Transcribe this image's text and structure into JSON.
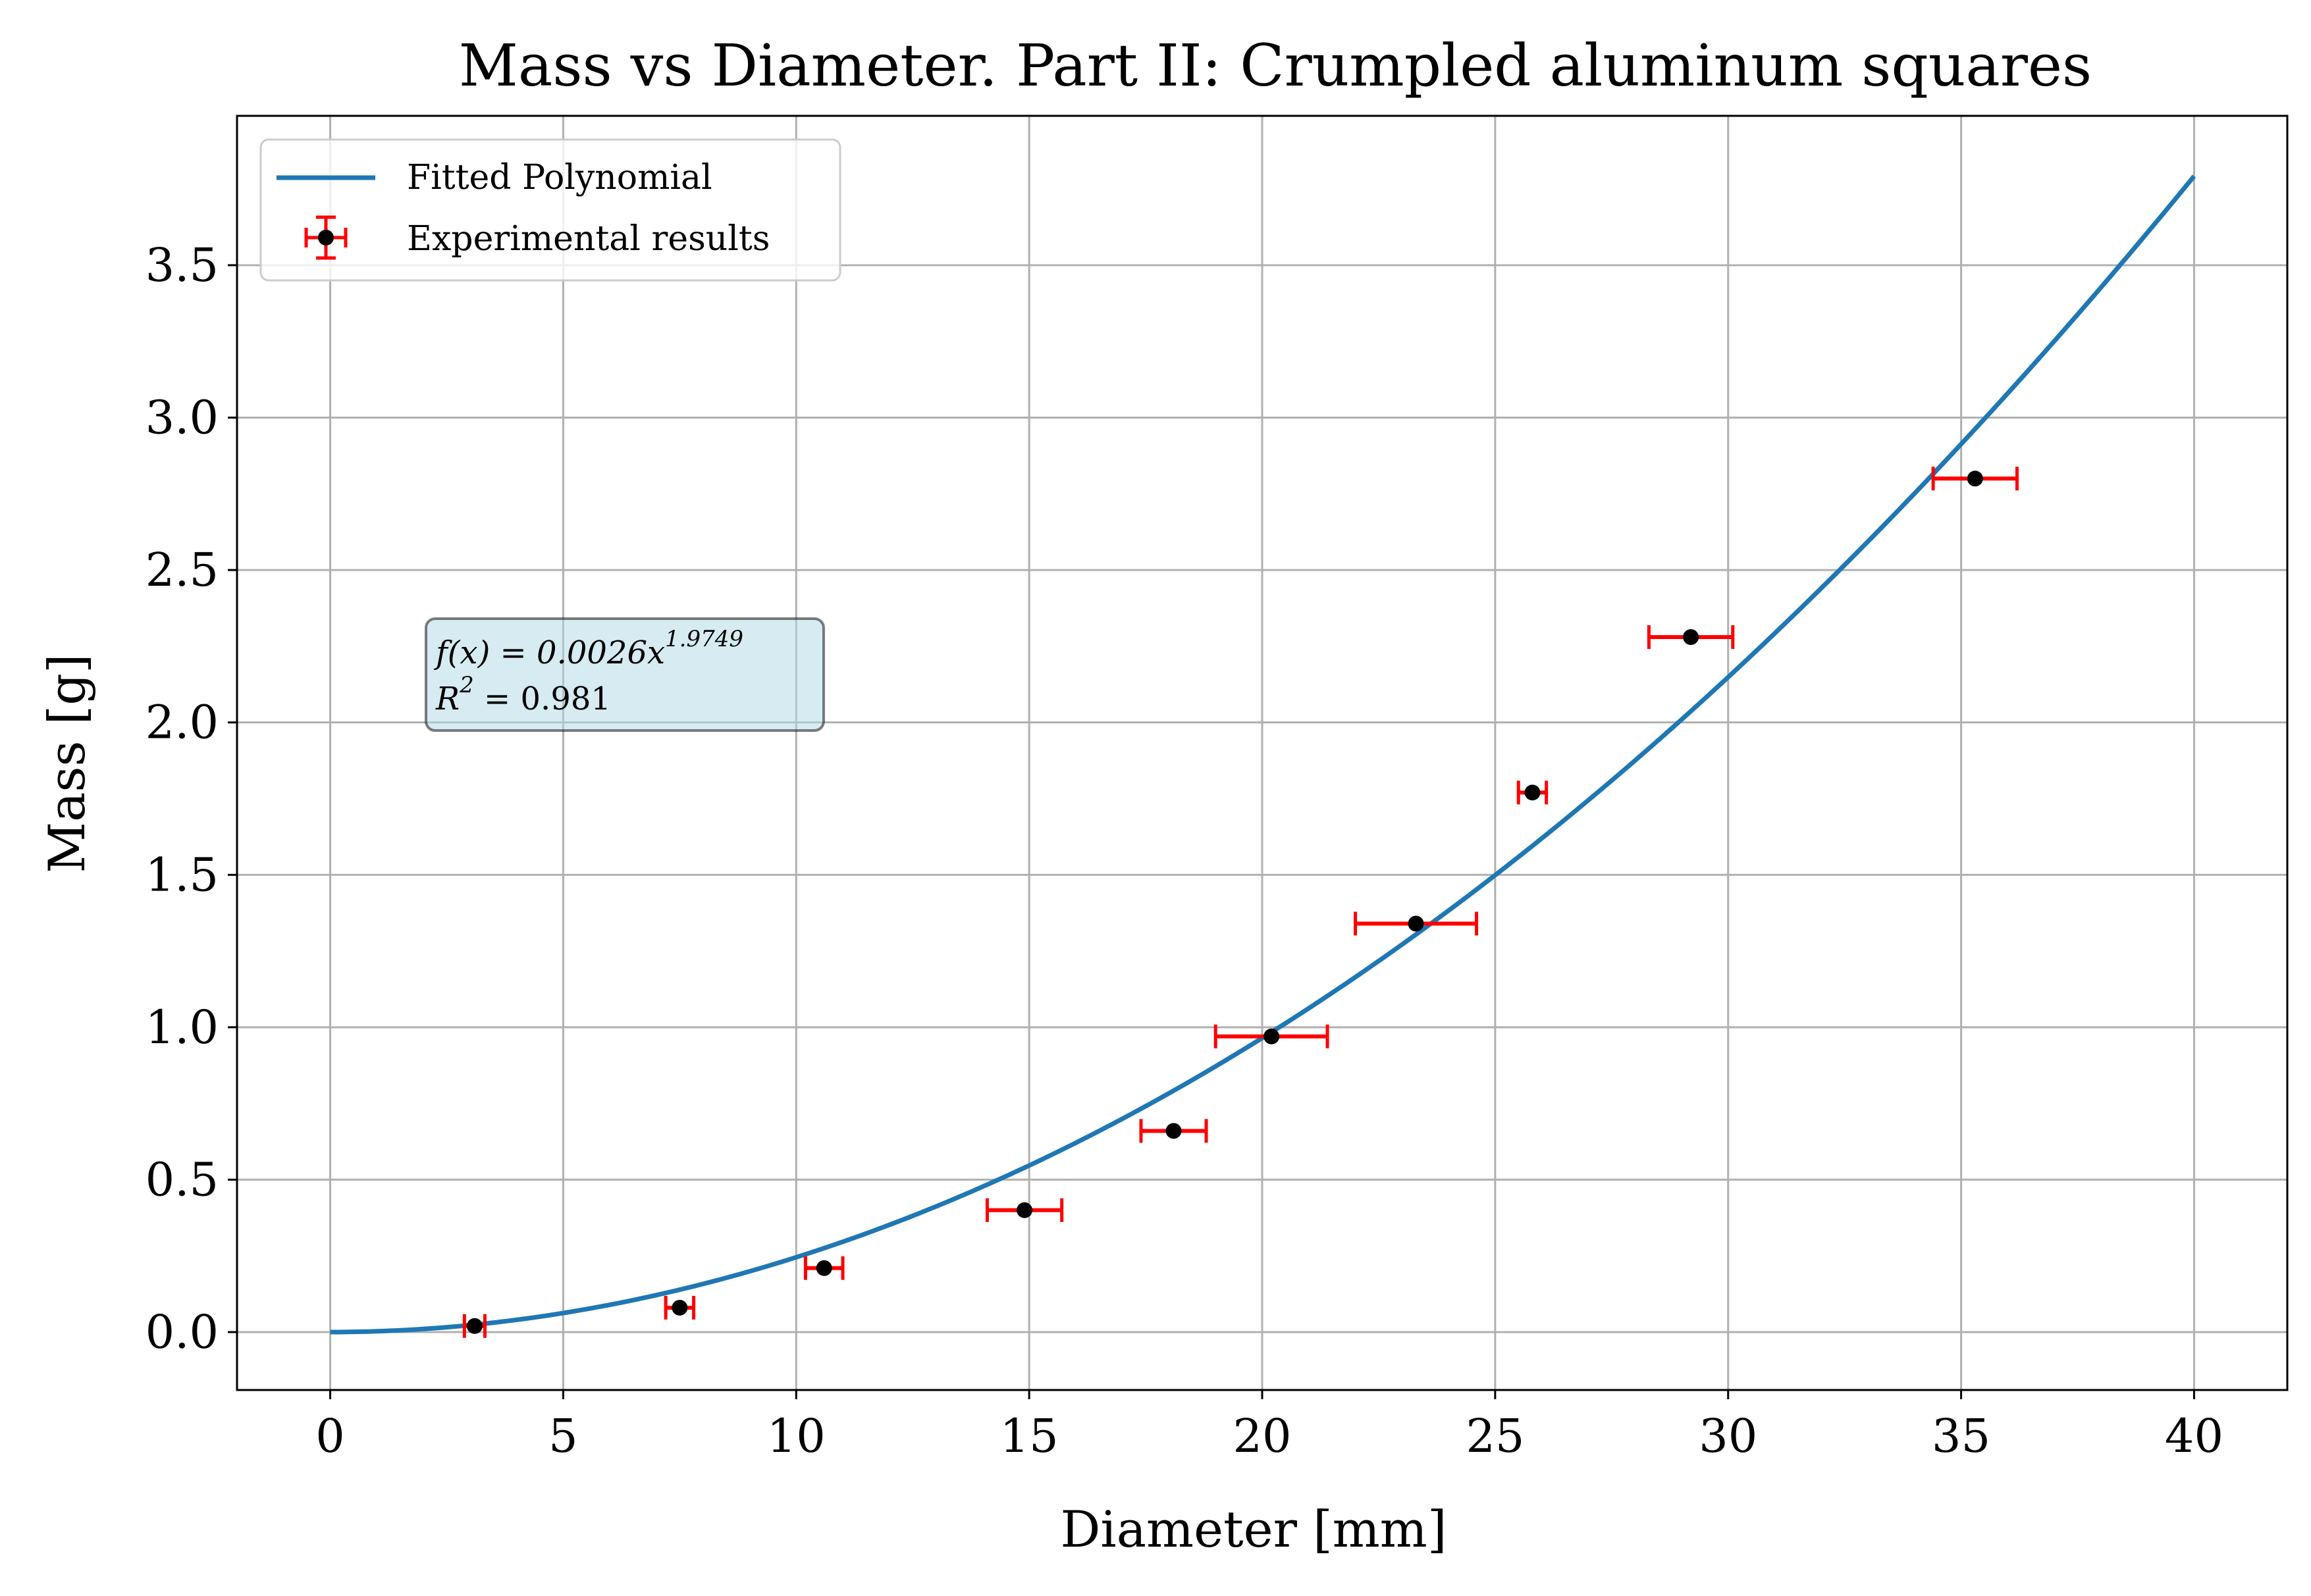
{
  "chart_data": {
    "type": "scatter",
    "title": "Mass vs Diameter. Part II: Crumpled aluminum squares",
    "xlabel": "Diameter [mm]",
    "ylabel": "Mass [g]",
    "xlim": [
      -2,
      42
    ],
    "ylim": [
      -0.19,
      3.99
    ],
    "xticks": [
      0,
      5,
      10,
      15,
      20,
      25,
      30,
      35,
      40
    ],
    "xtick_labels": [
      "0",
      "5",
      "10",
      "15",
      "20",
      "25",
      "30",
      "35",
      "40"
    ],
    "yticks": [
      0.0,
      0.5,
      1.0,
      1.5,
      2.0,
      2.5,
      3.0,
      3.5
    ],
    "ytick_labels": [
      "0.0",
      "0.5",
      "1.0",
      "1.5",
      "2.0",
      "2.5",
      "3.0",
      "3.5"
    ],
    "grid": true,
    "legend_position": "top-left",
    "series": [
      {
        "name": "Fitted Polynomial",
        "kind": "line",
        "color": "#1f77b4",
        "function": {
          "coefficient": 0.0026,
          "exponent": 1.9749
        },
        "x_range": [
          0,
          40
        ]
      },
      {
        "name": "Experimental results",
        "kind": "errorbar",
        "marker_color": "#000000",
        "error_color": "#ff0000",
        "x": [
          3.1,
          7.5,
          10.6,
          14.9,
          18.1,
          20.2,
          23.3,
          25.8,
          29.2,
          35.3
        ],
        "y": [
          0.02,
          0.08,
          0.21,
          0.4,
          0.66,
          0.97,
          1.34,
          1.77,
          2.28,
          2.8
        ],
        "xerr": [
          0.22,
          0.3,
          0.4,
          0.8,
          0.7,
          1.2,
          1.3,
          0.3,
          0.9,
          0.9
        ]
      }
    ],
    "annotation": {
      "line1": "f(x) = 0.0026x^1.9749",
      "line1_base": "f(x) = 0.0026x",
      "line1_exponent": "1.9749",
      "line2": "R^2 = 0.981",
      "line2_base": "R",
      "line2_exponent": "2",
      "line2_rest": " = 0.981",
      "box_color": "#add8e6",
      "anchor": {
        "x": 2.2,
        "y": 2.2
      }
    }
  }
}
